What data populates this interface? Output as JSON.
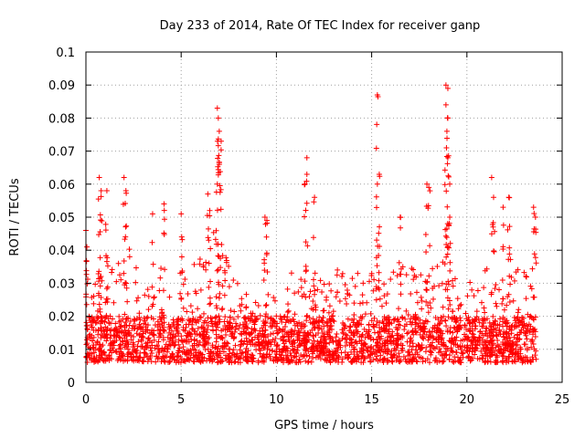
{
  "chart_data": {
    "type": "scatter",
    "title": "Day 233 of 2014, Rate Of TEC Index for receiver ganp",
    "xlabel": "GPS time / hours",
    "ylabel": "ROTI / TECUs",
    "xlim": [
      0,
      25
    ],
    "ylim": [
      0,
      0.1
    ],
    "xticks": [
      0,
      5,
      10,
      15,
      20,
      25
    ],
    "xtick_labels": [
      "0",
      "5",
      "10",
      "15",
      "20",
      "25"
    ],
    "yticks": [
      0,
      0.01,
      0.02,
      0.03,
      0.04,
      0.05,
      0.06,
      0.07,
      0.08,
      0.09,
      0.1
    ],
    "ytick_labels": [
      "0",
      "0.01",
      "0.02",
      "0.03",
      "0.04",
      "0.05",
      "0.06",
      "0.07",
      "0.08",
      "0.09",
      "0.1"
    ],
    "grid": true,
    "marker": "+",
    "color": "#ff0000",
    "series": [
      {
        "name": "ROTI",
        "profile": {
          "x_range": [
            0,
            23.7
          ],
          "baseline_range": [
            0.006,
            0.02
          ],
          "typical_envelope": [
            [
              0,
              0.02
            ],
            [
              0.5,
              0.03
            ],
            [
              1,
              0.04
            ],
            [
              1.5,
              0.035
            ],
            [
              2,
              0.045
            ],
            [
              3,
              0.03
            ],
            [
              4,
              0.035
            ],
            [
              5,
              0.035
            ],
            [
              6,
              0.04
            ],
            [
              6.5,
              0.05
            ],
            [
              7,
              0.045
            ],
            [
              8,
              0.03
            ],
            [
              9,
              0.025
            ],
            [
              10,
              0.03
            ],
            [
              11,
              0.035
            ],
            [
              12,
              0.035
            ],
            [
              13,
              0.035
            ],
            [
              14,
              0.035
            ],
            [
              15,
              0.035
            ],
            [
              16,
              0.035
            ],
            [
              17,
              0.035
            ],
            [
              18,
              0.035
            ],
            [
              19,
              0.04
            ],
            [
              20,
              0.03
            ],
            [
              21,
              0.035
            ],
            [
              22,
              0.04
            ],
            [
              23,
              0.035
            ],
            [
              23.7,
              0.04
            ]
          ],
          "peaks": [
            [
              0.0,
              0.046
            ],
            [
              0.05,
              0.041
            ],
            [
              0.7,
              0.062
            ],
            [
              0.8,
              0.058
            ],
            [
              1.1,
              0.058
            ],
            [
              2.0,
              0.062
            ],
            [
              2.1,
              0.058
            ],
            [
              3.5,
              0.051
            ],
            [
              4.1,
              0.054
            ],
            [
              5.0,
              0.051
            ],
            [
              6.4,
              0.057
            ],
            [
              6.5,
              0.052
            ],
            [
              6.9,
              0.083
            ],
            [
              6.95,
              0.08
            ],
            [
              7.0,
              0.076
            ],
            [
              7.1,
              0.073
            ],
            [
              7.0,
              0.066
            ],
            [
              6.9,
              0.06
            ],
            [
              9.4,
              0.05
            ],
            [
              9.5,
              0.049
            ],
            [
              11.6,
              0.068
            ],
            [
              11.6,
              0.063
            ],
            [
              11.5,
              0.06
            ],
            [
              12.0,
              0.056
            ],
            [
              15.3,
              0.087
            ],
            [
              15.4,
              0.063
            ],
            [
              15.3,
              0.06
            ],
            [
              16.5,
              0.05
            ],
            [
              17.9,
              0.06
            ],
            [
              18.0,
              0.059
            ],
            [
              18.9,
              0.09
            ],
            [
              19.0,
              0.089
            ],
            [
              18.9,
              0.084
            ],
            [
              19.0,
              0.08
            ],
            [
              18.95,
              0.076
            ],
            [
              19.0,
              0.068
            ],
            [
              19.1,
              0.06
            ],
            [
              19.1,
              0.05
            ],
            [
              21.3,
              0.062
            ],
            [
              21.4,
              0.056
            ],
            [
              21.9,
              0.053
            ],
            [
              22.2,
              0.056
            ],
            [
              23.5,
              0.053
            ],
            [
              23.6,
              0.05
            ]
          ]
        }
      }
    ]
  }
}
